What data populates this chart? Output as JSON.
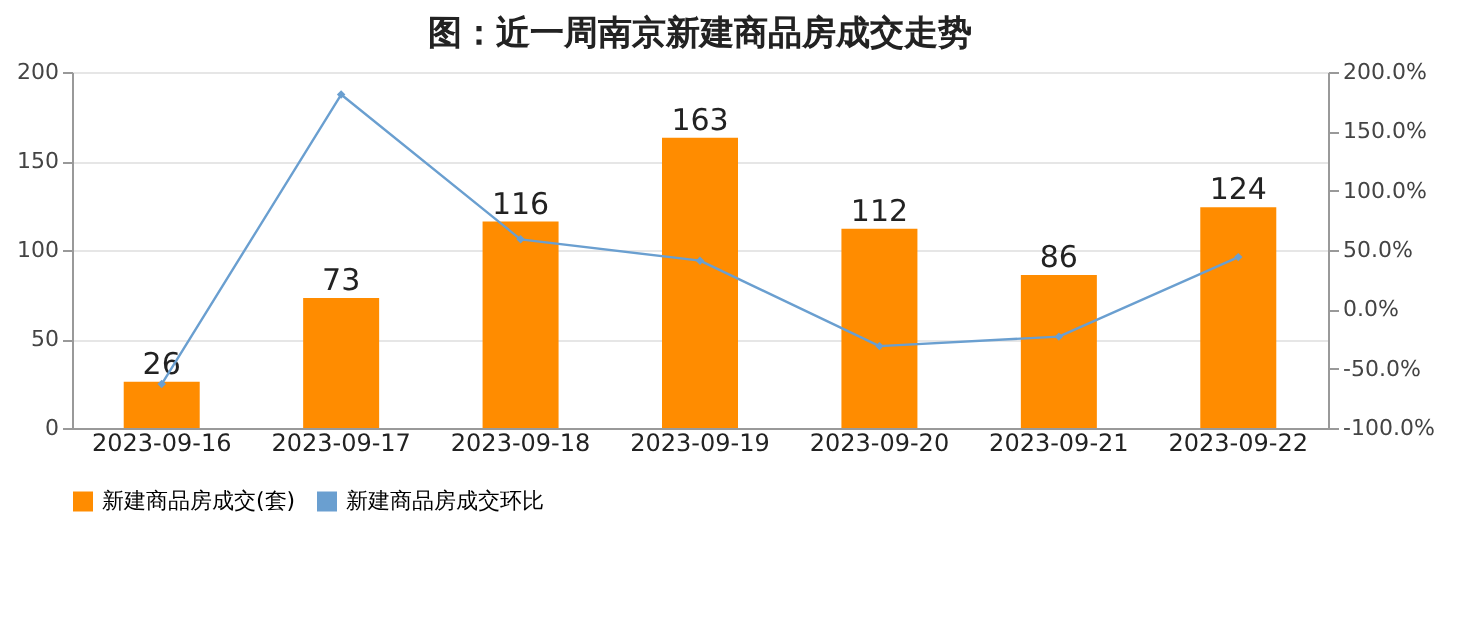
{
  "chart_data": {
    "type": "bar",
    "title": "图：近一周南京新建商品房成交走势",
    "categories": [
      "2023-09-16",
      "2023-09-17",
      "2023-09-18",
      "2023-09-19",
      "2023-09-20",
      "2023-09-21",
      "2023-09-22"
    ],
    "series": [
      {
        "name": "新建商品房成交(套)",
        "color": "#ff8c00",
        "values": [
          26,
          73,
          116,
          163,
          112,
          86,
          124
        ],
        "data_labels": true
      },
      {
        "name": "新建商品房成交环比",
        "type": "line",
        "axis": "y2",
        "color": "#6a9fd0",
        "marker": "diamond",
        "values": [
          -63,
          181,
          59,
          41,
          -31,
          -23,
          44
        ]
      }
    ],
    "ylim": [
      0,
      200
    ],
    "yticks": [
      0,
      50,
      100,
      150,
      200
    ],
    "y2lim": [
      -100,
      200
    ],
    "y2ticks": [
      {
        "value": -100,
        "label": "-100.0%"
      },
      {
        "value": -50,
        "label": "-50.0%"
      },
      {
        "value": 0,
        "label": "0.0%"
      },
      {
        "value": 50,
        "label": "50.0%"
      },
      {
        "value": 100,
        "label": "100.0%"
      },
      {
        "value": 150,
        "label": "150.0%"
      },
      {
        "value": 200,
        "label": "200.0%"
      }
    ],
    "grid": "y",
    "legend": "bottom"
  }
}
